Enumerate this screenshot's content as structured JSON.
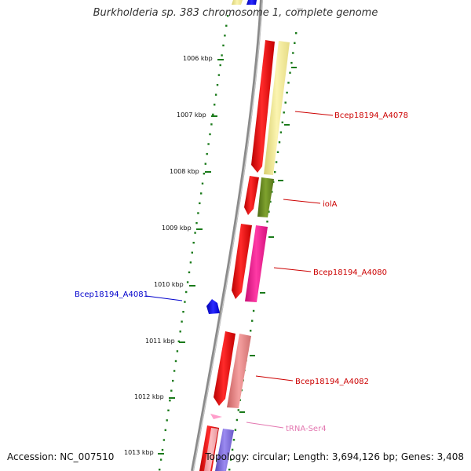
{
  "title": "Burkholderia sp. 383 chromosome 1, complete genome",
  "footer": {
    "accession": "Accession: NC_007510",
    "summary": "Topology: circular; Length: 3,694,126 bp; Genes: 3,408"
  },
  "colors": {
    "backbone": "#808080",
    "tick": "#1a7a1a",
    "forward_label": "#cc0000",
    "reverse_label": "#0000cc",
    "trna_label": "#e377b0"
  },
  "ticks": [
    "1006 kbp",
    "1007 kbp",
    "1008 kbp",
    "1009 kbp",
    "1010 kbp",
    "1011 kbp",
    "1012 kbp",
    "1013 kbp"
  ],
  "genes": [
    {
      "label": "Bcep18194_A4078",
      "strand": "forward",
      "color": "#f7eea0"
    },
    {
      "label": "iolA",
      "strand": "forward",
      "color": "#6b8e23"
    },
    {
      "label": "Bcep18194_A4080",
      "strand": "forward",
      "color": "#ff1493"
    },
    {
      "label": "Bcep18194_A4081",
      "strand": "reverse",
      "color": "#0000ff"
    },
    {
      "label": "Bcep18194_A4082",
      "strand": "forward",
      "color": "#f08080"
    },
    {
      "label": "tRNA-Ser4",
      "strand": "forward",
      "color": "#ff9ecb"
    }
  ]
}
